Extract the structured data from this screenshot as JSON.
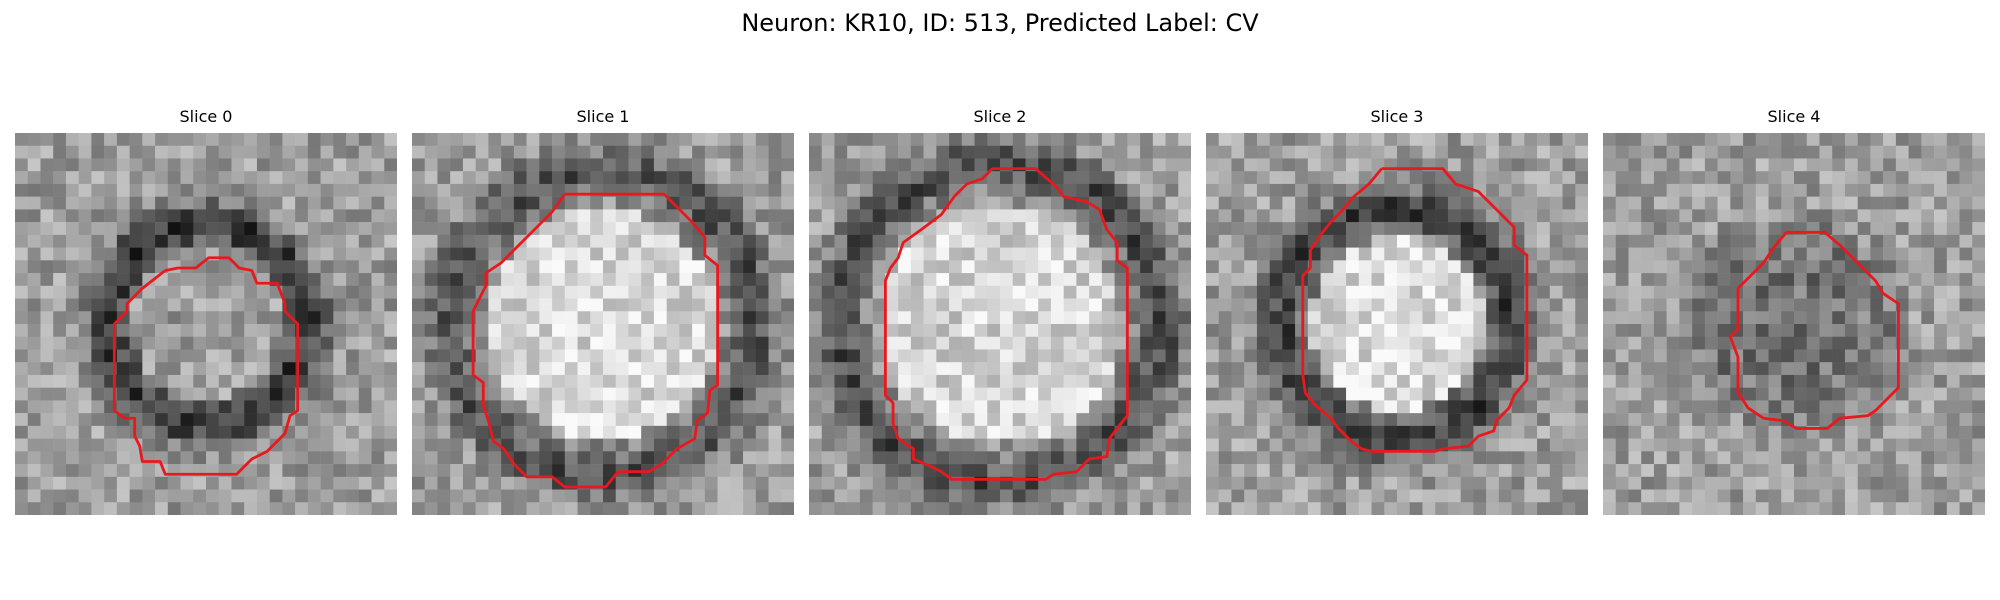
{
  "figure": {
    "title": "Neuron: KR10, ID: 513, Predicted Label: CV",
    "contour_color": "#e8191e"
  },
  "panels": [
    {
      "title": "Slice 0",
      "seed": 11,
      "center_brightness": 0.62,
      "ring_darkness": 0.75,
      "ring_radius": 0.26
    },
    {
      "title": "Slice 1",
      "seed": 23,
      "center_brightness": 0.85,
      "ring_darkness": 0.55,
      "ring_radius": 0.4
    },
    {
      "title": "Slice 2",
      "seed": 37,
      "center_brightness": 0.83,
      "ring_darkness": 0.6,
      "ring_radius": 0.42
    },
    {
      "title": "Slice 3",
      "seed": 41,
      "center_brightness": 0.86,
      "ring_darkness": 0.7,
      "ring_radius": 0.3
    },
    {
      "title": "Slice 4",
      "seed": 53,
      "center_brightness": 0.45,
      "ring_darkness": 0.3,
      "ring_radius": 0.22
    }
  ]
}
